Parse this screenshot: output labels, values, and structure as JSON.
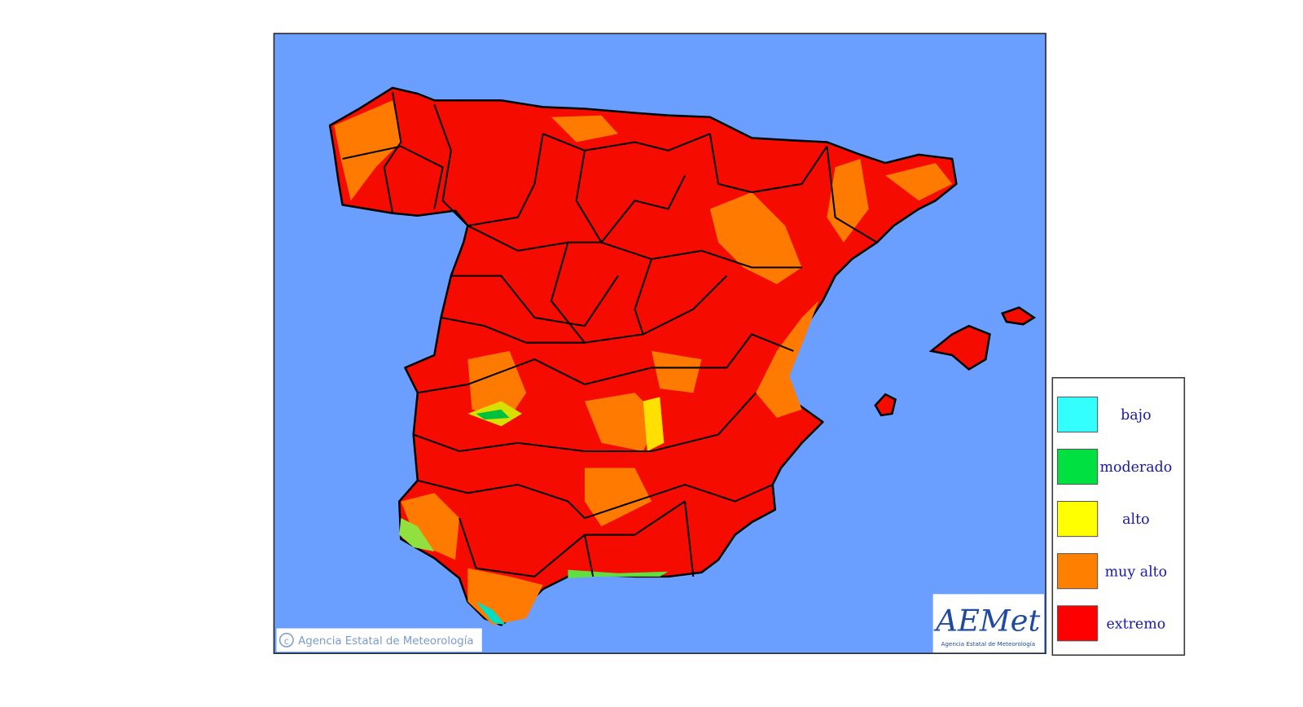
{
  "copyright": "Agencia Estatal de Meteorología",
  "logo": {
    "name": "AEMet",
    "subtitle": "Agencia Estatal de Meteorología"
  },
  "legend": [
    {
      "label": "bajo",
      "color": "#33ffff"
    },
    {
      "label": "moderado",
      "color": "#00e040"
    },
    {
      "label": "alto",
      "color": "#ffff00"
    },
    {
      "label": "muy alto",
      "color": "#ff8000"
    },
    {
      "label": "extremo",
      "color": "#ff0000"
    }
  ]
}
